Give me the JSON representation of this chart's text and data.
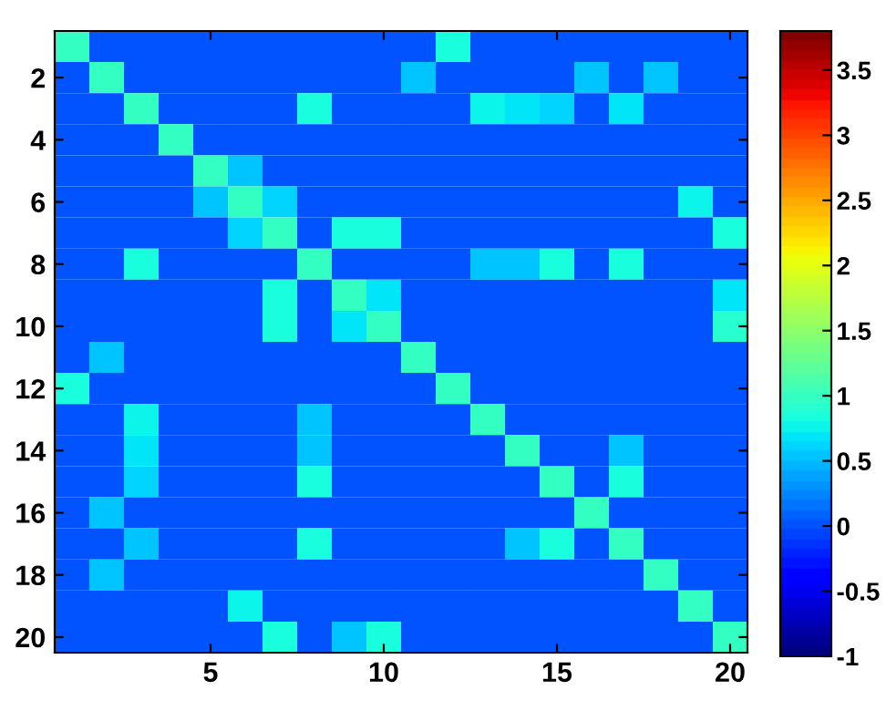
{
  "chart_data": {
    "type": "heatmap",
    "categories": [
      null,
      null,
      null,
      null,
      "5",
      null,
      null,
      null,
      null,
      "10",
      null,
      null,
      null,
      null,
      "15",
      null,
      null,
      null,
      null,
      "20"
    ],
    "y_categories": [
      null,
      "2",
      null,
      "4",
      null,
      "6",
      null,
      "8",
      null,
      "10",
      null,
      "12",
      null,
      "14",
      null,
      "16",
      null,
      "18",
      null,
      "20"
    ],
    "cells": [
      [
        1,
        0,
        0,
        0,
        0,
        0,
        0,
        0,
        0,
        0,
        0,
        0.8,
        0,
        0,
        0,
        0,
        0,
        0,
        0,
        0
      ],
      [
        0,
        1,
        0,
        0,
        0,
        0,
        0,
        0,
        0,
        0,
        0.55,
        0,
        0,
        0,
        0,
        0.55,
        0,
        0.55,
        0,
        0
      ],
      [
        0,
        0,
        1,
        0,
        0,
        0,
        0,
        0.8,
        0,
        0,
        0,
        0,
        0.75,
        0.65,
        0.6,
        0,
        0.65,
        0,
        0,
        0
      ],
      [
        0,
        0,
        0,
        1,
        0,
        0,
        0,
        0,
        0,
        0,
        0,
        0,
        0,
        0,
        0,
        0,
        0,
        0,
        0,
        0
      ],
      [
        0,
        0,
        0,
        0,
        1,
        0.55,
        0,
        0,
        0,
        0,
        0,
        0,
        0,
        0,
        0,
        0,
        0,
        0,
        0,
        0
      ],
      [
        0,
        0,
        0,
        0,
        0.55,
        1,
        0.6,
        0,
        0,
        0,
        0,
        0,
        0,
        0,
        0,
        0,
        0,
        0,
        0.75,
        0
      ],
      [
        0,
        0,
        0,
        0,
        0,
        0.6,
        1,
        0,
        0.8,
        0.8,
        0,
        0,
        0,
        0,
        0,
        0,
        0,
        0,
        0,
        0.8
      ],
      [
        0,
        0,
        0.8,
        0,
        0,
        0,
        0,
        1,
        0,
        0,
        0,
        0,
        0.55,
        0.55,
        0.8,
        0,
        0.8,
        0,
        0,
        0
      ],
      [
        0,
        0,
        0,
        0,
        0,
        0,
        0.8,
        0,
        1,
        0.65,
        0,
        0,
        0,
        0,
        0,
        0,
        0,
        0,
        0,
        0.65
      ],
      [
        0,
        0,
        0,
        0,
        0,
        0,
        0.8,
        0,
        0.65,
        1,
        0,
        0,
        0,
        0,
        0,
        0,
        0,
        0,
        0,
        0.9
      ],
      [
        0,
        0.55,
        0,
        0,
        0,
        0,
        0,
        0,
        0,
        0,
        1,
        0,
        0,
        0,
        0,
        0,
        0,
        0,
        0,
        0
      ],
      [
        0.8,
        0,
        0,
        0,
        0,
        0,
        0,
        0,
        0,
        0,
        0,
        1,
        0,
        0,
        0,
        0,
        0,
        0,
        0,
        0
      ],
      [
        0,
        0,
        0.75,
        0,
        0,
        0,
        0,
        0.55,
        0,
        0,
        0,
        0,
        1,
        0,
        0,
        0,
        0,
        0,
        0,
        0
      ],
      [
        0,
        0,
        0.65,
        0,
        0,
        0,
        0,
        0.55,
        0,
        0,
        0,
        0,
        0,
        1,
        0,
        0,
        0.55,
        0,
        0,
        0
      ],
      [
        0,
        0,
        0.6,
        0,
        0,
        0,
        0,
        0.8,
        0,
        0,
        0,
        0,
        0,
        0,
        1,
        0,
        0.8,
        0,
        0,
        0
      ],
      [
        0,
        0.55,
        0,
        0,
        0,
        0,
        0,
        0,
        0,
        0,
        0,
        0,
        0,
        0,
        0,
        1,
        0,
        0,
        0,
        0
      ],
      [
        0,
        0,
        0.55,
        0,
        0,
        0,
        0,
        0.8,
        0,
        0,
        0,
        0,
        0,
        0.55,
        0.8,
        0,
        1,
        0,
        0,
        0
      ],
      [
        0,
        0.55,
        0,
        0,
        0,
        0,
        0,
        0,
        0,
        0,
        0,
        0,
        0,
        0,
        0,
        0,
        0,
        1,
        0,
        0
      ],
      [
        0,
        0,
        0,
        0,
        0,
        0.75,
        0,
        0,
        0,
        0,
        0,
        0,
        0,
        0,
        0,
        0,
        0,
        0,
        1,
        0
      ],
      [
        0,
        0,
        0,
        0,
        0,
        0,
        0.8,
        0,
        0.55,
        0.8,
        0,
        0,
        0,
        0,
        0,
        0,
        0,
        0,
        0,
        1
      ]
    ],
    "clim": [
      -1,
      3.8
    ],
    "cticks": [
      -1,
      -0.5,
      0,
      0.5,
      1,
      1.5,
      2,
      2.5,
      3,
      3.5
    ]
  }
}
